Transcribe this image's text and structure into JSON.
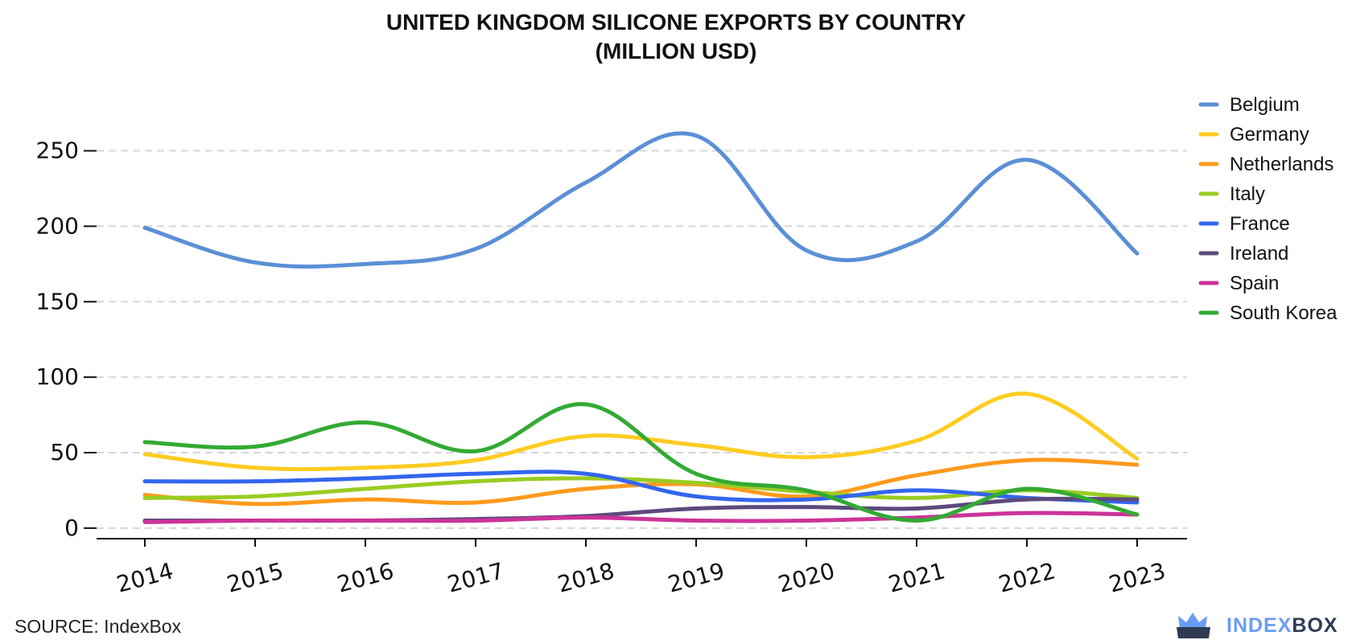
{
  "title_line1": "UNITED KINGDOM SILICONE EXPORTS BY COUNTRY",
  "title_line2": "(MILLION USD)",
  "source": "SOURCE: IndexBox",
  "brand": {
    "part1": "INDEX",
    "part2": "BOX",
    "icon": "crown-box-logo-icon"
  },
  "colors": {
    "Belgium": "#5b8fd6",
    "Germany": "#ffcc22",
    "Netherlands": "#ff9a1c",
    "Italy": "#99cc22",
    "France": "#3366ee",
    "Ireland": "#5c4a7e",
    "Spain": "#cc3399",
    "South Korea": "#33aa33"
  },
  "chart_data": {
    "type": "line",
    "title": "UNITED KINGDOM SILICONE EXPORTS BY COUNTRY (MILLION USD)",
    "xlabel": "",
    "ylabel": "",
    "ylim": [
      -7,
      270
    ],
    "yticks": [
      0,
      50,
      100,
      150,
      200,
      250
    ],
    "grid": true,
    "legend_position": "right",
    "x": [
      "2014",
      "2015",
      "2016",
      "2017",
      "2018",
      "2019",
      "2020",
      "2021",
      "2022",
      "2023"
    ],
    "series": [
      {
        "name": "Belgium",
        "values": [
          199,
          176,
          175,
          185,
          229,
          260,
          184,
          190,
          244,
          182
        ]
      },
      {
        "name": "Germany",
        "values": [
          49,
          40,
          40,
          45,
          61,
          55,
          47,
          58,
          89,
          46
        ]
      },
      {
        "name": "Netherlands",
        "values": [
          22,
          16,
          19,
          17,
          26,
          29,
          21,
          35,
          45,
          42
        ]
      },
      {
        "name": "Italy",
        "values": [
          20,
          21,
          26,
          31,
          33,
          30,
          24,
          20,
          25,
          20
        ]
      },
      {
        "name": "France",
        "values": [
          31,
          31,
          33,
          36,
          36,
          21,
          19,
          25,
          20,
          17
        ]
      },
      {
        "name": "Ireland",
        "values": [
          5,
          5,
          5,
          6,
          8,
          13,
          14,
          13,
          19,
          19
        ]
      },
      {
        "name": "Spain",
        "values": [
          4,
          5,
          5,
          5,
          7,
          5,
          5,
          7,
          10,
          9
        ]
      },
      {
        "name": "South Korea",
        "values": [
          57,
          54,
          70,
          51,
          82,
          36,
          25,
          5,
          26,
          9
        ]
      }
    ]
  }
}
